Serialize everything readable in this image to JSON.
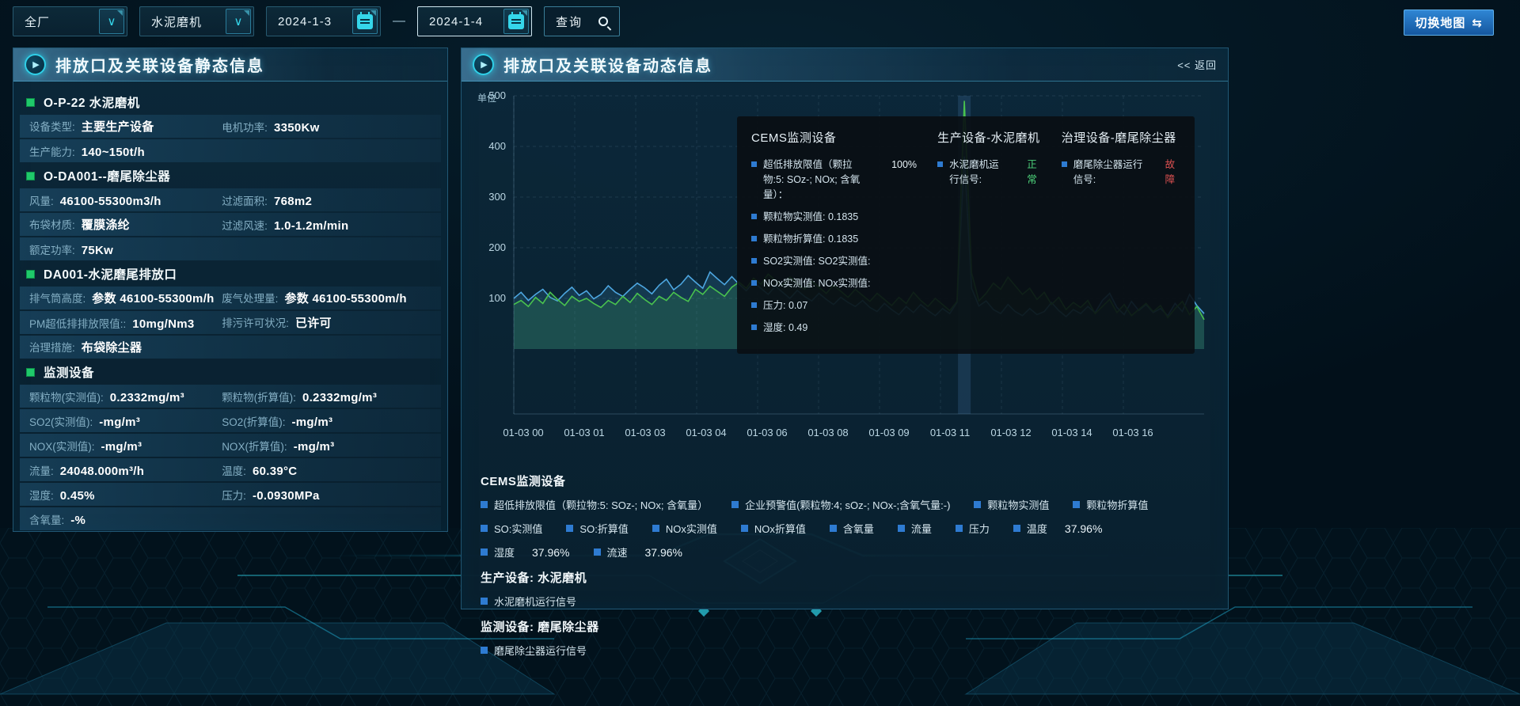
{
  "colors": {
    "accent": "#35d6ea",
    "series_blue": "#4da6e0",
    "series_green": "#49c24e",
    "status_ok": "#4dd17a",
    "status_error": "#e05252",
    "legend_square": "#2e7bd1",
    "section_bullet": "#1fc96a",
    "switch_button": "#2f86d4"
  },
  "toolbar": {
    "plant_select": "全厂",
    "device_select": "水泥磨机",
    "date_start": "2024-1-3",
    "date_separator": "—",
    "date_end": "2024-1-4",
    "query_label": "查询",
    "switch_map_label": "切换地图",
    "switch_icon": "⇆",
    "chevron": "∨"
  },
  "left_panel": {
    "title": "排放口及关联设备静态信息",
    "play_glyph": "▶",
    "sections": [
      {
        "header": "O-P-22 水泥磨机",
        "rows": [
          [
            {
              "label": "设备类型:",
              "value": "主要生产设备"
            },
            {
              "label": "电机功率:",
              "value": "3350Kw"
            }
          ],
          [
            {
              "label": "生产能力:",
              "value": "140~150t/h"
            }
          ]
        ]
      },
      {
        "header": "O-DA001--磨尾除尘器",
        "rows": [
          [
            {
              "label": "风量:",
              "value": "46100-55300m3/h"
            },
            {
              "label": "过滤面积:",
              "value": "768m2"
            }
          ],
          [
            {
              "label": "布袋材质:",
              "value": "覆膜涤纶"
            },
            {
              "label": "过滤风速:",
              "value": "1.0-1.2m/min"
            }
          ],
          [
            {
              "label": "额定功率:",
              "value": "75Kw"
            }
          ]
        ]
      },
      {
        "header": "DA001-水泥磨尾排放口",
        "rows": [
          [
            {
              "label": "排气筒高度:",
              "value": "参数 46100-55300m/h"
            },
            {
              "label": "废气处理量:",
              "value": "参数 46100-55300m/h"
            }
          ],
          [
            {
              "label": "PM超低排排放限值::",
              "value": "10mg/Nm3"
            },
            {
              "label": "排污许可状况:",
              "value": "已许可"
            }
          ],
          [
            {
              "label": "治理措施:",
              "value": "布袋除尘器"
            }
          ]
        ]
      },
      {
        "header": "监测设备",
        "rows": [
          [
            {
              "label": "颗粒物(实测值):",
              "value": "0.2332mg/m³"
            },
            {
              "label": "颗粒物(折算值):",
              "value": "0.2332mg/m³"
            }
          ],
          [
            {
              "label": "SO2(实测值):",
              "value": "-mg/m³"
            },
            {
              "label": "SO2(折算值):",
              "value": "-mg/m³"
            }
          ],
          [
            {
              "label": "NOX(实测值):",
              "value": "-mg/m³"
            },
            {
              "label": "NOX(折算值):",
              "value": "-mg/m³"
            }
          ],
          [
            {
              "label": "流量:",
              "value": "24048.000m³/h"
            },
            {
              "label": "温度:",
              "value": "60.39°C"
            }
          ],
          [
            {
              "label": "湿度:",
              "value": "0.45%"
            },
            {
              "label": "压力:",
              "value": "-0.0930MPa"
            }
          ],
          [
            {
              "label": "含氧量:",
              "value": "-%"
            }
          ]
        ]
      }
    ]
  },
  "right_panel": {
    "title": "排放口及关联设备动态信息",
    "play_glyph": "▶",
    "back_link": "<< 返回",
    "tooltip": {
      "columns": [
        {
          "title": "CEMS监测设备",
          "rows": [
            {
              "label": "超低排放限值（颗拉物:5: SOz-; NOx; 含氧量）：",
              "value": "100%"
            },
            {
              "label": "颗粒物实测值: 0.1835"
            },
            {
              "label": "颗粒物折算值: 0.1835"
            },
            {
              "label": "SO2实测值: SO2实测值:"
            },
            {
              "label": "NOx实测值: NOx实测值:"
            },
            {
              "label": "压力: 0.07"
            },
            {
              "label": "湿度: 0.49"
            }
          ]
        },
        {
          "title": "生产设备-水泥磨机",
          "rows": [
            {
              "label": "水泥磨机运行信号:",
              "value": "正常",
              "status": "ok"
            }
          ]
        },
        {
          "title": "治理设备-磨尾除尘器",
          "rows": [
            {
              "label": "磨尾除尘器运行信号:",
              "value": "故障",
              "status": "error"
            }
          ]
        }
      ]
    },
    "legend_sections": [
      {
        "title": "CEMS监测设备",
        "items": [
          {
            "label": "超低排放限值（颗拉物:5: SOz-; NOx; 含氧量）"
          },
          {
            "label": "企业预警值(颗粒物:4; sOz-; NOx-;含氧气量:-)"
          },
          {
            "label": "颗粒物实测值"
          },
          {
            "label": "颗粒物折算值"
          },
          {
            "label": "SO:实测值"
          },
          {
            "label": "SO:折算值"
          },
          {
            "label": "NOx实测值"
          },
          {
            "label": "NOx折算值"
          },
          {
            "label": "含氧量"
          },
          {
            "label": "流量"
          },
          {
            "label": "压力"
          },
          {
            "label": "温度",
            "value": "37.96%"
          },
          {
            "label": "湿度",
            "value": "37.96%"
          },
          {
            "label": "流速",
            "value": "37.96%"
          }
        ]
      },
      {
        "title": "生产设备: 水泥磨机",
        "items": [
          {
            "label": "水泥磨机运行信号"
          }
        ]
      },
      {
        "title": "监测设备: 磨尾除尘器",
        "items": [
          {
            "label": "磨尾除尘器运行信号"
          }
        ]
      }
    ]
  },
  "chart_data": {
    "type": "line",
    "ylabel": "单位",
    "ylim": [
      0,
      500
    ],
    "yticks": [
      100,
      200,
      300,
      400,
      500
    ],
    "grid": true,
    "x_labels": [
      "01-03 00",
      "01-03 01",
      "01-03 03",
      "01-03 04",
      "01-03 06",
      "01-03 08",
      "01-03 09",
      "01-03 11",
      "01-03 12",
      "01-03 14",
      "01-03 16"
    ],
    "highlight_index": 62,
    "series": [
      {
        "name": "颗粒物实测值",
        "color": "#4da6e0",
        "values": [
          100,
          112,
          96,
          108,
          118,
          102,
          95,
          110,
          122,
          106,
          115,
          99,
          108,
          125,
          112,
          104,
          118,
          130,
          121,
          109,
          126,
          138,
          117,
          128,
          145,
          132,
          120,
          152,
          139,
          127,
          143,
          128,
          115,
          132,
          120,
          108,
          124,
          112,
          100,
          116,
          104,
          95,
          110,
          98,
          88,
          102,
          92,
          84,
          96,
          82,
          74,
          90,
          78,
          68,
          84,
          72,
          88,
          76,
          66,
          80,
          70,
          92,
          380,
          120,
          85,
          95,
          78,
          70,
          88,
          74,
          66,
          80,
          68,
          74,
          92,
          76,
          64,
          78,
          70,
          84,
          72,
          96,
          110,
          82,
          68,
          94,
          76,
          88,
          72,
          80,
          66,
          90,
          74,
          108,
          86,
          70
        ]
      },
      {
        "name": "颗粒物折算值",
        "color": "#49c24e",
        "values": [
          88,
          96,
          84,
          102,
          90,
          112,
          98,
          86,
          104,
          94,
          100,
          90,
          82,
          96,
          88,
          104,
          92,
          110,
          98,
          88,
          104,
          96,
          112,
          102,
          94,
          118,
          108,
          124,
          114,
          104,
          122,
          132,
          120,
          140,
          128,
          148,
          136,
          126,
          142,
          130,
          118,
          134,
          122,
          110,
          126,
          114,
          102,
          118,
          106,
          94,
          110,
          98,
          86,
          102,
          90,
          112,
          96,
          84,
          100,
          88,
          76,
          94,
          490,
          150,
          95,
          110,
          130,
          118,
          142,
          125,
          108,
          120,
          98,
          112,
          88,
          102,
          78,
          92,
          82,
          96,
          70,
          84,
          98,
          72,
          88,
          66,
          78,
          90,
          74,
          86,
          62,
          80,
          94,
          68,
          84,
          58
        ]
      }
    ]
  }
}
